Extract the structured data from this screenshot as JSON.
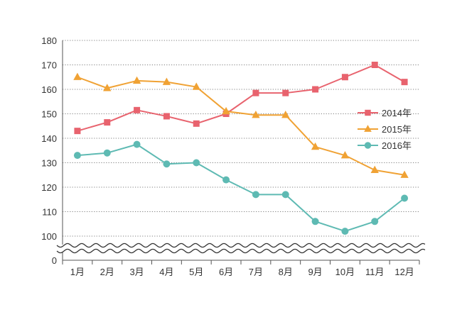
{
  "chart_data": {
    "type": "line",
    "title": "",
    "xlabel": "",
    "ylabel": "",
    "categories": [
      "1月",
      "2月",
      "3月",
      "4月",
      "5月",
      "6月",
      "7月",
      "8月",
      "9月",
      "10月",
      "11月",
      "12月"
    ],
    "y_ticks": [
      180,
      170,
      160,
      150,
      140,
      130,
      120,
      110,
      100
    ],
    "y_zero_label": "0",
    "ylim": [
      100,
      180
    ],
    "broken_axis": true,
    "grid": "horizontal-dotted",
    "legend_position": "right",
    "series": [
      {
        "name": "2014年",
        "color": "#e8636e",
        "marker": "square",
        "values": [
          143,
          146.5,
          151.5,
          149,
          146,
          150,
          158.5,
          158.5,
          160,
          165,
          170,
          163
        ]
      },
      {
        "name": "2015年",
        "color": "#f0a234",
        "marker": "triangle",
        "values": [
          165,
          160.5,
          163.5,
          163,
          161,
          151,
          149.5,
          149.5,
          136.5,
          133,
          127,
          125
        ]
      },
      {
        "name": "2016年",
        "color": "#5ebab3",
        "marker": "circle",
        "values": [
          133,
          134,
          137.5,
          129.5,
          130,
          123,
          117,
          117,
          106,
          102,
          106,
          115.5
        ]
      }
    ]
  }
}
